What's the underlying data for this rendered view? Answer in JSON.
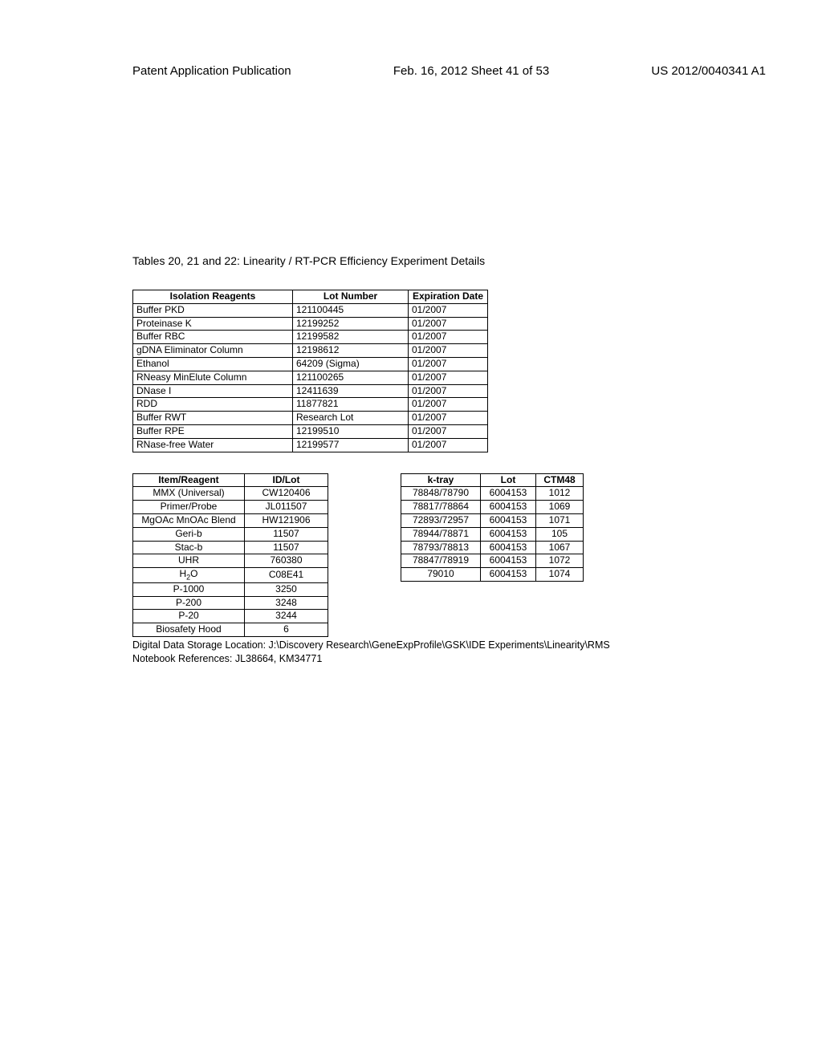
{
  "header": {
    "left": "Patent Application Publication",
    "center": "Feb. 16, 2012  Sheet 41 of 53",
    "right": "US 2012/0040341 A1"
  },
  "caption": "Tables 20, 21 and 22: Linearity / RT-PCR Efficiency Experiment Details",
  "table1": {
    "headers": [
      "Isolation Reagents",
      "Lot Number",
      "Expiration Date"
    ],
    "rows": [
      [
        "Buffer PKD",
        "121100445",
        "01/2007"
      ],
      [
        "Proteinase K",
        "12199252",
        "01/2007"
      ],
      [
        "Buffer RBC",
        "12199582",
        "01/2007"
      ],
      [
        "gDNA Eliminator Column",
        "12198612",
        "01/2007"
      ],
      [
        "Ethanol",
        "64209 (Sigma)",
        "01/2007"
      ],
      [
        "RNeasy MinElute Column",
        "121100265",
        "01/2007"
      ],
      [
        "DNase I",
        "12411639",
        "01/2007"
      ],
      [
        "RDD",
        "11877821",
        "01/2007"
      ],
      [
        "Buffer RWT",
        "Research Lot",
        "01/2007"
      ],
      [
        "Buffer RPE",
        "12199510",
        "01/2007"
      ],
      [
        "RNase-free Water",
        "12199577",
        "01/2007"
      ]
    ]
  },
  "table2": {
    "headers": [
      "Item/Reagent",
      "ID/Lot"
    ],
    "rows": [
      [
        "MMX (Universal)",
        "CW120406"
      ],
      [
        "Primer/Probe",
        "JL011507"
      ],
      [
        "MgOAc MnOAc Blend",
        "HW121906"
      ],
      [
        "Geri-b",
        "11507"
      ],
      [
        "Stac-b",
        "11507"
      ],
      [
        "UHR",
        "760380"
      ],
      [
        "H₂O",
        "C08E41"
      ],
      [
        "P-1000",
        "3250"
      ],
      [
        "P-200",
        "3248"
      ],
      [
        "P-20",
        "3244"
      ],
      [
        "Biosafety Hood",
        "6"
      ]
    ]
  },
  "table3": {
    "headers": [
      "k-tray",
      "Lot",
      "CTM48"
    ],
    "rows": [
      [
        "78848/78790",
        "6004153",
        "1012"
      ],
      [
        "78817/78864",
        "6004153",
        "1069"
      ],
      [
        "72893/72957",
        "6004153",
        "1071"
      ],
      [
        "78944/78871",
        "6004153",
        "105"
      ],
      [
        "78793/78813",
        "6004153",
        "1067"
      ],
      [
        "78847/78919",
        "6004153",
        "1072"
      ],
      [
        "79010",
        "6004153",
        "1074"
      ]
    ]
  },
  "footer": {
    "line1": "Digital Data Storage Location: J:\\Discovery Research\\GeneExpProfile\\GSK\\IDE Experiments\\Linearity\\RMS",
    "line2": "Notebook References: JL38664, KM34771"
  }
}
